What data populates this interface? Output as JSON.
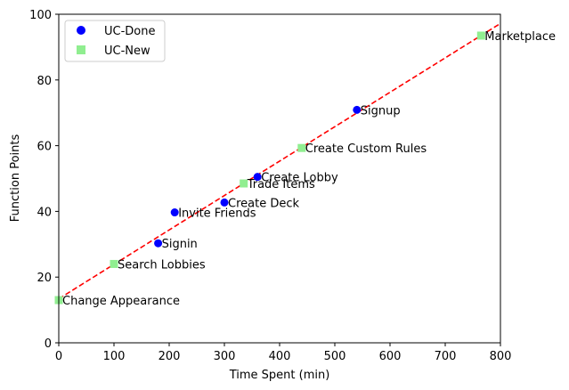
{
  "chart_data": {
    "type": "scatter",
    "title": "",
    "xlabel": "Time Spent (min)",
    "ylabel": "Function Points",
    "xlim": [
      0,
      800
    ],
    "ylim": [
      0,
      100
    ],
    "x_ticks": [
      0,
      100,
      200,
      300,
      400,
      500,
      600,
      700,
      800
    ],
    "y_ticks": [
      0,
      20,
      40,
      60,
      80,
      100
    ],
    "grid": false,
    "legend_position": "upper-left",
    "series": [
      {
        "name": "UC-Done",
        "marker": "circle",
        "color": "#0000ff",
        "points": [
          {
            "label": "Signin",
            "x": 180,
            "y": 30.3
          },
          {
            "label": "Invite Friends",
            "x": 210,
            "y": 39.7
          },
          {
            "label": "Create Deck",
            "x": 300,
            "y": 42.7
          },
          {
            "label": "Create Lobby",
            "x": 360,
            "y": 50.5
          },
          {
            "label": "Signup",
            "x": 540,
            "y": 70.9
          }
        ]
      },
      {
        "name": "UC-New",
        "marker": "square",
        "color": "#90ee90",
        "points": [
          {
            "label": "Change Appearance",
            "x": 0,
            "y": 13.0
          },
          {
            "label": "Search Lobbies",
            "x": 100,
            "y": 24.0
          },
          {
            "label": "Trade Items",
            "x": 335,
            "y": 48.5
          },
          {
            "label": "Create Custom Rules",
            "x": 440,
            "y": 59.3
          },
          {
            "label": "Marketplace",
            "x": 765,
            "y": 93.5
          }
        ]
      }
    ],
    "trend_line": {
      "style": "dashed",
      "color": "#ff0000",
      "x": [
        0,
        800
      ],
      "y": [
        13.4,
        97.2
      ]
    }
  }
}
